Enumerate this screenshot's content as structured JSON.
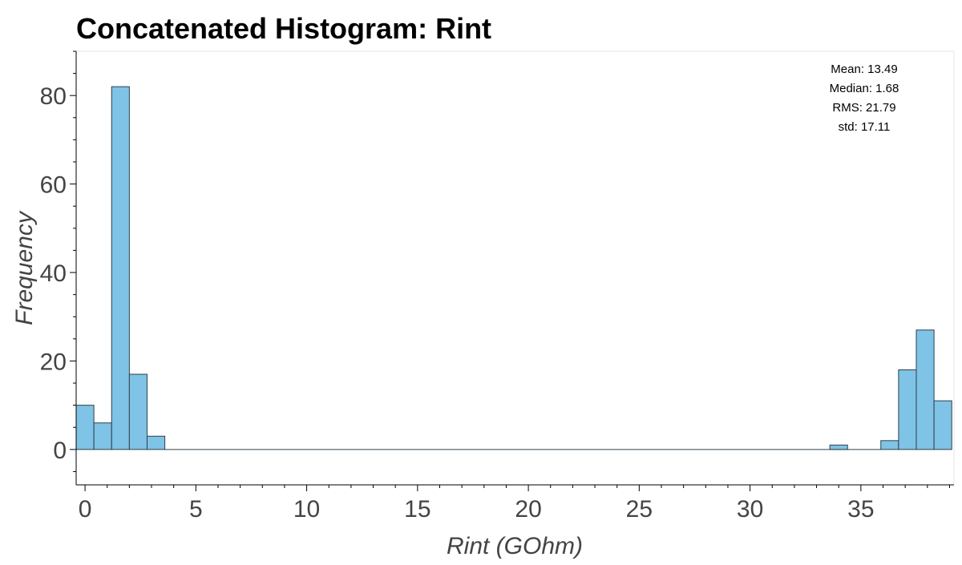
{
  "chart_data": {
    "type": "bar",
    "title": "Concatenated Histogram: Rint",
    "xlabel": "Rint (GOhm)",
    "ylabel": "Frequency",
    "xlim": [
      -0.4,
      39.2
    ],
    "ylim": [
      -8,
      90
    ],
    "bin_width": 0.8,
    "bins": [
      {
        "x0": -0.4,
        "x1": 0.4,
        "count": 10
      },
      {
        "x0": 0.4,
        "x1": 1.2,
        "count": 6
      },
      {
        "x0": 1.2,
        "x1": 2.0,
        "count": 82
      },
      {
        "x0": 2.0,
        "x1": 2.8,
        "count": 17
      },
      {
        "x0": 2.8,
        "x1": 3.6,
        "count": 3
      },
      {
        "x0": 33.6,
        "x1": 34.4,
        "count": 1
      },
      {
        "x0": 35.9,
        "x1": 36.7,
        "count": 2
      },
      {
        "x0": 36.7,
        "x1": 37.5,
        "count": 18
      },
      {
        "x0": 37.5,
        "x1": 38.3,
        "count": 27
      },
      {
        "x0": 38.3,
        "x1": 39.1,
        "count": 11
      }
    ],
    "baseline": {
      "x0": 3.6,
      "x1": 35.9,
      "value": 0
    },
    "x_ticks": [
      "0",
      "5",
      "10",
      "15",
      "20",
      "25",
      "30",
      "35"
    ],
    "x_tick_values": [
      0,
      5,
      10,
      15,
      20,
      25,
      30,
      35
    ],
    "y_ticks": [
      "0",
      "20",
      "40",
      "60",
      "80"
    ],
    "y_tick_values": [
      0,
      20,
      40,
      60,
      80
    ],
    "stats": [
      "Mean: 13.49",
      "Median: 1.68",
      "RMS: 21.79",
      "std: 17.11"
    ],
    "bar_color": "#7fc3e6",
    "bar_edge": "#2f3f4a",
    "grid": false
  }
}
